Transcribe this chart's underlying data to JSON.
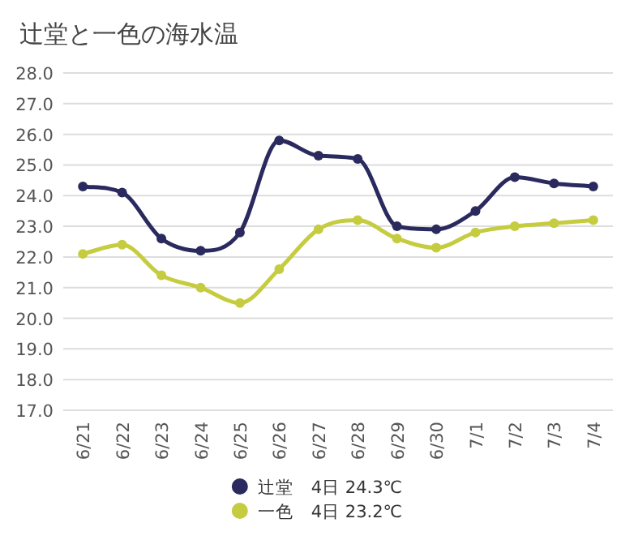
{
  "chart_data": {
    "type": "line",
    "title": "辻堂と一色の海水温",
    "categories": [
      "6/21",
      "6/22",
      "6/23",
      "6/24",
      "6/25",
      "6/26",
      "6/27",
      "6/28",
      "6/29",
      "6/30",
      "7/1",
      "7/2",
      "7/3",
      "7/4"
    ],
    "series": [
      {
        "name": "辻堂　4日 24.3℃",
        "color": "#2b2a5e",
        "values": [
          24.3,
          24.1,
          22.6,
          22.2,
          22.8,
          25.8,
          25.3,
          25.2,
          23.0,
          22.9,
          23.5,
          24.6,
          24.4,
          24.3
        ]
      },
      {
        "name": "一色　4日 23.2℃",
        "color": "#c5cc3f",
        "values": [
          22.1,
          22.4,
          21.4,
          21.0,
          20.5,
          21.6,
          22.9,
          23.2,
          22.6,
          22.3,
          22.8,
          23.0,
          23.1,
          23.2
        ]
      }
    ],
    "ylim": [
      17,
      28
    ],
    "yticks": [
      {
        "value": 17,
        "label": "17.0"
      },
      {
        "value": 18,
        "label": "18.0"
      },
      {
        "value": 19,
        "label": "19.0"
      },
      {
        "value": 20,
        "label": "20.0"
      },
      {
        "value": 21,
        "label": "21.0"
      },
      {
        "value": 22,
        "label": "22.0"
      },
      {
        "value": 23,
        "label": "23.0"
      },
      {
        "value": 24,
        "label": "24.0"
      },
      {
        "value": 25,
        "label": "25.0"
      },
      {
        "value": 26,
        "label": "26.0"
      },
      {
        "value": 27,
        "label": "27.0"
      },
      {
        "value": 28,
        "label": "28.0"
      }
    ],
    "grid": "y",
    "legend": "bottom",
    "marker": "circle",
    "line_style": "solid"
  }
}
